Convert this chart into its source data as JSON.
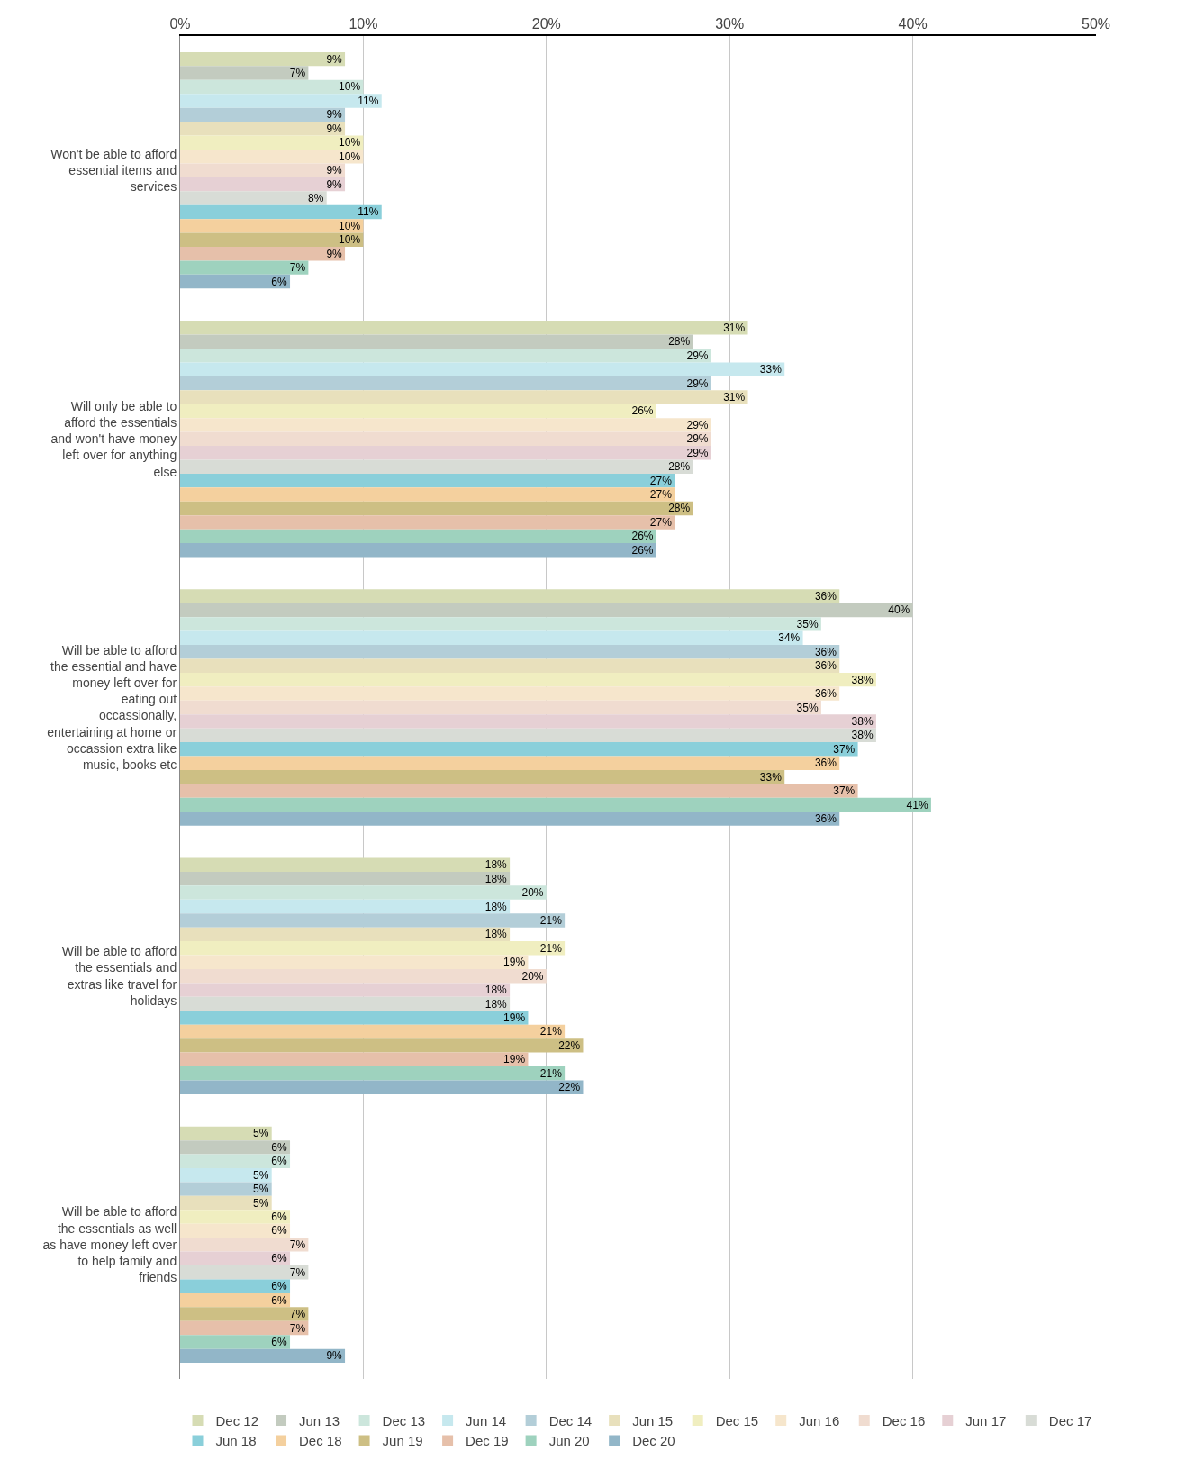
{
  "chart_data": {
    "type": "bar",
    "orientation": "horizontal",
    "categories": [
      "Won't be able to afford essential items and services",
      "Will only be able to afford the essentials and won't have money left over for anything else",
      "Will be able to afford the essential and have money left over for eating out occassionally, entertaining at home or occassion extra like music, books etc",
      "Will be able to afford the essentials and extras like travel for holidays",
      "Will be able to afford the essentials as well as have money left over to help family and friends"
    ],
    "xlim": [
      0,
      50
    ],
    "xticks": [
      {
        "value": 0,
        "label": "0%"
      },
      {
        "value": 10,
        "label": "10%"
      },
      {
        "value": 20,
        "label": "20%"
      },
      {
        "value": 30,
        "label": "30%"
      },
      {
        "value": 40,
        "label": "40%"
      },
      {
        "value": 50,
        "label": "50%"
      }
    ],
    "grid": "x",
    "legend": "bottom",
    "series": [
      {
        "name": "Dec 12",
        "color": "#d6dcb4",
        "values": [
          9,
          31,
          36,
          18,
          5
        ],
        "value_labels": [
          "9%",
          "31%",
          "36%",
          "18%",
          "5%"
        ]
      },
      {
        "name": "Jun 13",
        "color": "#c3cbbf",
        "values": [
          7,
          28,
          40,
          18,
          6
        ],
        "value_labels": [
          "7%",
          "28%",
          "40%",
          "18%",
          "6%"
        ]
      },
      {
        "name": "Dec 13",
        "color": "#cce6dc",
        "values": [
          10,
          29,
          35,
          20,
          6
        ],
        "value_labels": [
          "10%",
          "29%",
          "35%",
          "20%",
          "6%"
        ]
      },
      {
        "name": "Jun 14",
        "color": "#c6e8ee",
        "values": [
          11,
          33,
          34,
          18,
          5
        ],
        "value_labels": [
          "11%",
          "33%",
          "34%",
          "18%",
          "5%"
        ]
      },
      {
        "name": "Dec 14",
        "color": "#b3ced8",
        "values": [
          9,
          29,
          36,
          21,
          5
        ],
        "value_labels": [
          "9%",
          "29%",
          "36%",
          "21%",
          "5%"
        ]
      },
      {
        "name": "Jun 15",
        "color": "#e8e0bc",
        "values": [
          9,
          31,
          36,
          18,
          5
        ],
        "value_labels": [
          "9%",
          "31%",
          "36%",
          "18%",
          "5%"
        ]
      },
      {
        "name": "Dec 15",
        "color": "#f0eec0",
        "values": [
          10,
          26,
          38,
          21,
          6
        ],
        "value_labels": [
          "10%",
          "26%",
          "38%",
          "21%",
          "6%"
        ]
      },
      {
        "name": "Jun 16",
        "color": "#f6e6cc",
        "values": [
          10,
          29,
          36,
          19,
          6
        ],
        "value_labels": [
          "10%",
          "29%",
          "36%",
          "19%",
          "6%"
        ]
      },
      {
        "name": "Dec 16",
        "color": "#f0dcd0",
        "values": [
          9,
          29,
          35,
          20,
          7
        ],
        "value_labels": [
          "9%",
          "29%",
          "35%",
          "20%",
          "7%"
        ]
      },
      {
        "name": "Jun 17",
        "color": "#e6d0d4",
        "values": [
          9,
          29,
          38,
          18,
          6
        ],
        "value_labels": [
          "9%",
          "29%",
          "38%",
          "18%",
          "6%"
        ]
      },
      {
        "name": "Dec 17",
        "color": "#d8dcd6",
        "values": [
          8,
          28,
          38,
          18,
          7
        ],
        "value_labels": [
          "8%",
          "28%",
          "38%",
          "18%",
          "7%"
        ]
      },
      {
        "name": "Jun 18",
        "color": "#8acfda",
        "values": [
          11,
          27,
          37,
          19,
          6
        ],
        "value_labels": [
          "11%",
          "27%",
          "37%",
          "19%",
          "6%"
        ]
      },
      {
        "name": "Dec 18",
        "color": "#f4d09e",
        "values": [
          10,
          27,
          36,
          21,
          6
        ],
        "value_labels": [
          "10%",
          "27%",
          "36%",
          "21%",
          "6%"
        ]
      },
      {
        "name": "Jun 19",
        "color": "#cdbf84",
        "values": [
          10,
          28,
          33,
          22,
          7
        ],
        "value_labels": [
          "10%",
          "28%",
          "33%",
          "22%",
          "7%"
        ]
      },
      {
        "name": "Dec 19",
        "color": "#e6c0aa",
        "values": [
          9,
          27,
          37,
          19,
          7
        ],
        "value_labels": [
          "9%",
          "27%",
          "37%",
          "19%",
          "7%"
        ]
      },
      {
        "name": "Jun 20",
        "color": "#9ed2be",
        "values": [
          7,
          26,
          41,
          21,
          6
        ],
        "value_labels": [
          "7%",
          "26%",
          "41%",
          "21%",
          "6%"
        ]
      },
      {
        "name": "Dec 20",
        "color": "#92b6c8",
        "values": [
          6,
          26,
          36,
          22,
          9
        ],
        "value_labels": [
          "6%",
          "26%",
          "36%",
          "22%",
          "9%"
        ]
      }
    ]
  }
}
